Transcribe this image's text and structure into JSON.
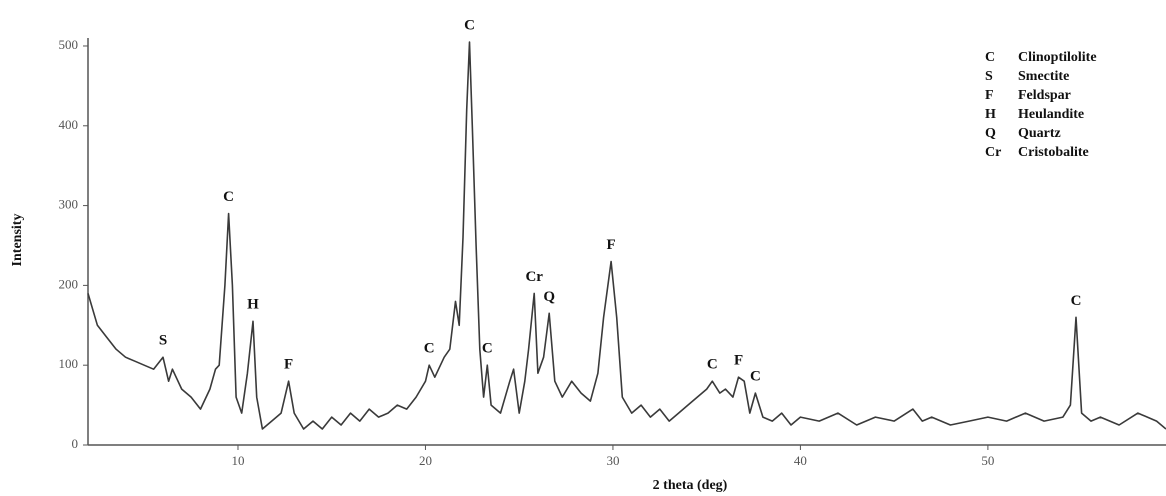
{
  "chart_data": {
    "type": "line",
    "xlabel": "2 theta (deg)",
    "ylabel": "Intensity",
    "xlim": [
      2,
      59.5
    ],
    "ylim": [
      0,
      510
    ],
    "xticks": [
      10,
      20,
      30,
      40,
      50
    ],
    "yticks": [
      0,
      100,
      200,
      300,
      400,
      500
    ],
    "color": "#3a3a3a",
    "x": [
      2,
      2.5,
      3,
      3.5,
      4,
      4.5,
      5,
      5.5,
      6,
      6.3,
      6.5,
      7,
      7.5,
      8,
      8.5,
      8.8,
      9,
      9.3,
      9.5,
      9.7,
      9.9,
      10.2,
      10.5,
      10.8,
      11,
      11.3,
      11.8,
      12.3,
      12.7,
      13,
      13.5,
      14,
      14.5,
      15,
      15.5,
      16,
      16.5,
      17,
      17.5,
      18,
      18.5,
      19,
      19.5,
      20,
      20.2,
      20.5,
      21,
      21.3,
      21.6,
      21.8,
      22,
      22.2,
      22.35,
      22.5,
      22.7,
      22.9,
      23.1,
      23.3,
      23.5,
      24,
      24.5,
      24.7,
      25,
      25.3,
      25.5,
      25.8,
      26,
      26.3,
      26.6,
      26.9,
      27.3,
      27.8,
      28.3,
      28.8,
      29.2,
      29.5,
      29.9,
      30.2,
      30.5,
      31,
      31.5,
      32,
      32.5,
      33,
      33.5,
      34,
      34.5,
      35,
      35.3,
      35.7,
      36,
      36.4,
      36.7,
      37,
      37.3,
      37.6,
      38,
      38.5,
      39,
      39.5,
      40,
      41,
      42,
      43,
      44,
      45,
      46,
      46.5,
      47,
      48,
      49,
      50,
      51,
      52,
      53,
      54,
      54.4,
      54.7,
      55,
      55.5,
      56,
      57,
      58,
      59,
      59.5
    ],
    "values": [
      190,
      150,
      135,
      120,
      110,
      105,
      100,
      95,
      110,
      80,
      95,
      70,
      60,
      45,
      70,
      95,
      100,
      200,
      290,
      200,
      60,
      40,
      90,
      155,
      60,
      20,
      30,
      40,
      80,
      40,
      20,
      30,
      20,
      35,
      25,
      40,
      30,
      45,
      35,
      40,
      50,
      45,
      60,
      80,
      100,
      85,
      110,
      120,
      180,
      150,
      260,
      420,
      505,
      400,
      250,
      120,
      60,
      100,
      50,
      40,
      80,
      95,
      40,
      80,
      120,
      190,
      90,
      110,
      165,
      80,
      60,
      80,
      65,
      55,
      90,
      160,
      230,
      160,
      60,
      40,
      50,
      35,
      45,
      30,
      40,
      50,
      60,
      70,
      80,
      65,
      70,
      60,
      85,
      80,
      40,
      65,
      35,
      30,
      40,
      25,
      35,
      30,
      40,
      25,
      35,
      30,
      45,
      30,
      35,
      25,
      30,
      35,
      30,
      40,
      30,
      35,
      50,
      160,
      40,
      30,
      35,
      25,
      40,
      30,
      20
    ],
    "annotations": [
      {
        "label": "S",
        "x": 6
      },
      {
        "label": "C",
        "x": 9.5
      },
      {
        "label": "H",
        "x": 10.8
      },
      {
        "label": "F",
        "x": 12.7
      },
      {
        "label": "C",
        "x": 20.2
      },
      {
        "label": "C",
        "x": 22.35
      },
      {
        "label": "C",
        "x": 23.3
      },
      {
        "label": "Cr",
        "x": 25.8
      },
      {
        "label": "Q",
        "x": 26.6
      },
      {
        "label": "F",
        "x": 29.9
      },
      {
        "label": "C",
        "x": 35.3
      },
      {
        "label": "F",
        "x": 36.7
      },
      {
        "label": "C",
        "x": 37.6
      },
      {
        "label": "C",
        "x": 54.7
      }
    ],
    "legend": [
      {
        "symbol": "C",
        "name": "Clinoptilolite"
      },
      {
        "symbol": "S",
        "name": "Smectite"
      },
      {
        "symbol": "F",
        "name": "Feldspar"
      },
      {
        "symbol": "H",
        "name": "Heulandite"
      },
      {
        "symbol": "Q",
        "name": "Quartz"
      },
      {
        "symbol": "Cr",
        "name": "Cristobalite"
      }
    ]
  }
}
